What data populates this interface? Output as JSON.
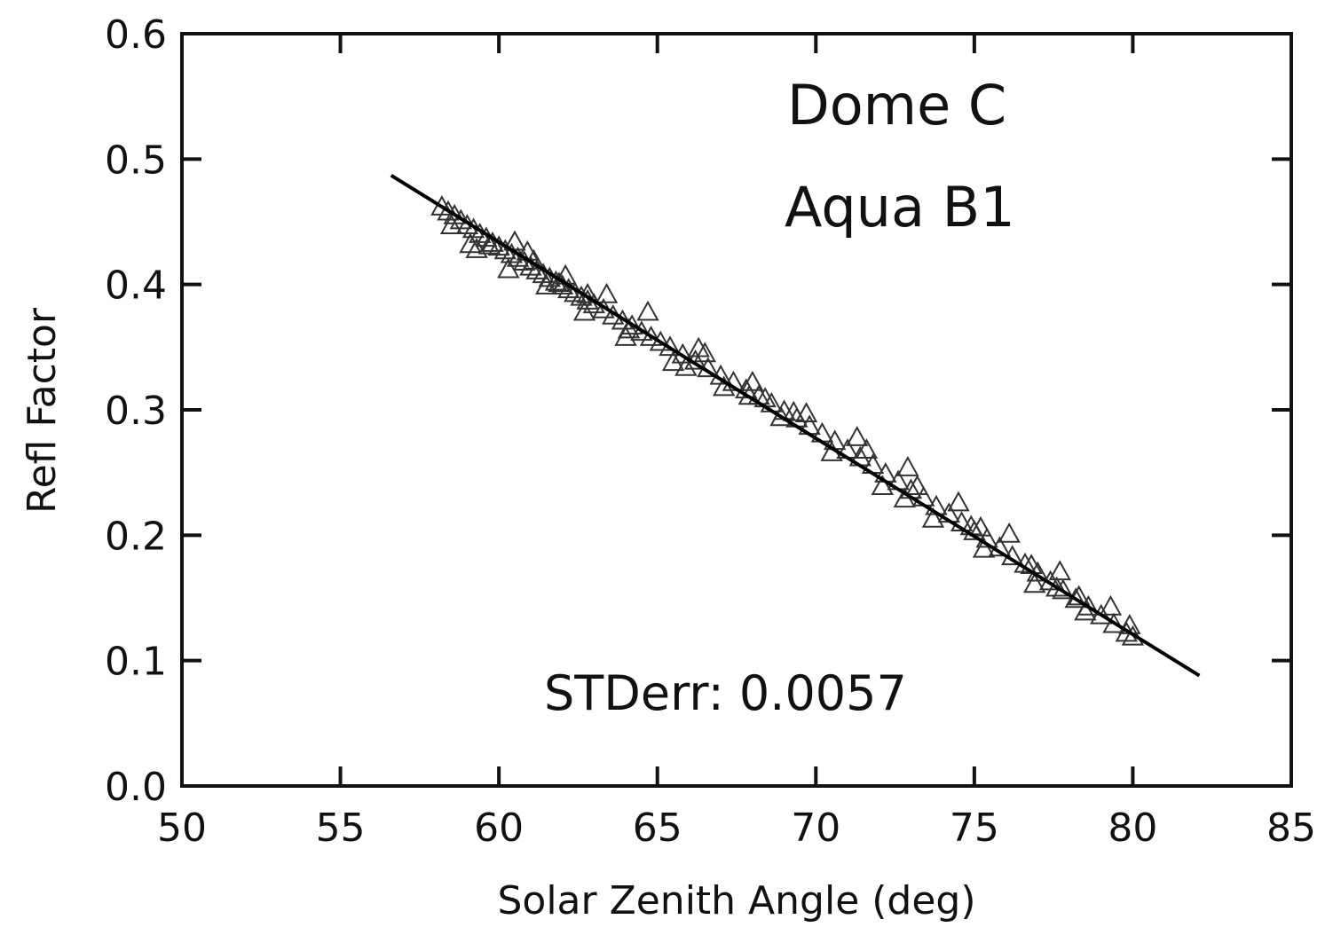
{
  "chart_data": {
    "type": "scatter",
    "title": "",
    "xlabel": "Solar Zenith Angle (deg)",
    "ylabel": "Refl Factor",
    "xlim": [
      50,
      85
    ],
    "ylim": [
      0.0,
      0.6
    ],
    "x_ticks": [
      "50",
      "55",
      "60",
      "65",
      "70",
      "75",
      "80",
      "85"
    ],
    "y_ticks": [
      "0.0",
      "0.1",
      "0.2",
      "0.3",
      "0.4",
      "0.5",
      "0.6"
    ],
    "grid": false,
    "legend": "none",
    "marker": "open-triangle",
    "annotations": {
      "site": "Dome C",
      "sensor": "Aqua B1",
      "stderr": "STDerr: 0.0057"
    },
    "fit_line": {
      "x": [
        56.6,
        82.1
      ],
      "y": [
        0.487,
        0.088
      ]
    },
    "series": [
      {
        "x": [
          58.2,
          58.4,
          58.6,
          58.8,
          59.0,
          59.2,
          59.4,
          59.6,
          59.8,
          60.0,
          60.2,
          60.4,
          60.6,
          60.8,
          61.0,
          61.2,
          61.4,
          61.6,
          61.8,
          62.0,
          62.2,
          62.4,
          62.6,
          62.8,
          63.0,
          63.3,
          63.6,
          63.9,
          64.2,
          64.5,
          64.8,
          65.1,
          65.4,
          65.8,
          66.2,
          66.6,
          67.0,
          67.4,
          67.8,
          68.2,
          68.6,
          69.0,
          69.4,
          69.8,
          70.2,
          70.6,
          71.0,
          71.4,
          71.8,
          72.2,
          72.6,
          73.0,
          73.4,
          73.8,
          74.2,
          74.6,
          75.0,
          75.4,
          75.8,
          76.2,
          76.6,
          77.0,
          77.4,
          77.8,
          78.2,
          78.6,
          79.0,
          79.4,
          79.8,
          80.0,
          58.5,
          59.1,
          59.7,
          60.3,
          60.9,
          61.5,
          62.1,
          62.7,
          63.4,
          64.0,
          64.7,
          65.5,
          66.3,
          67.1,
          68.0,
          68.9,
          69.7,
          70.5,
          71.3,
          72.1,
          72.9,
          73.7,
          74.5,
          75.3,
          76.1,
          76.9,
          77.7,
          78.5,
          79.3,
          62.8,
          64.1,
          66.5,
          68.4,
          69.3,
          71.6,
          72.8,
          75.2,
          76.8,
          78.3,
          79.9,
          60.5,
          61.1,
          61.9,
          59.3,
          65.9,
          67.9,
          73.2,
          74.9,
          77.6
        ],
        "y": [
          0.462,
          0.458,
          0.455,
          0.451,
          0.447,
          0.444,
          0.44,
          0.437,
          0.433,
          0.43,
          0.427,
          0.424,
          0.421,
          0.418,
          0.414,
          0.411,
          0.408,
          0.405,
          0.402,
          0.399,
          0.396,
          0.393,
          0.39,
          0.387,
          0.384,
          0.38,
          0.375,
          0.371,
          0.367,
          0.362,
          0.358,
          0.354,
          0.35,
          0.344,
          0.339,
          0.333,
          0.327,
          0.322,
          0.316,
          0.311,
          0.305,
          0.299,
          0.293,
          0.287,
          0.281,
          0.275,
          0.268,
          0.262,
          0.256,
          0.249,
          0.243,
          0.236,
          0.23,
          0.223,
          0.217,
          0.21,
          0.203,
          0.197,
          0.19,
          0.183,
          0.177,
          0.17,
          0.163,
          0.156,
          0.149,
          0.143,
          0.136,
          0.129,
          0.122,
          0.119,
          0.447,
          0.432,
          0.431,
          0.412,
          0.426,
          0.399,
          0.407,
          0.378,
          0.392,
          0.358,
          0.378,
          0.338,
          0.349,
          0.318,
          0.322,
          0.294,
          0.297,
          0.266,
          0.278,
          0.239,
          0.254,
          0.213,
          0.226,
          0.189,
          0.201,
          0.161,
          0.171,
          0.139,
          0.143,
          0.392,
          0.364,
          0.345,
          0.309,
          0.298,
          0.268,
          0.229,
          0.206,
          0.176,
          0.151,
          0.128,
          0.434,
          0.419,
          0.401,
          0.428,
          0.334,
          0.311,
          0.239,
          0.207,
          0.158
        ]
      }
    ]
  }
}
